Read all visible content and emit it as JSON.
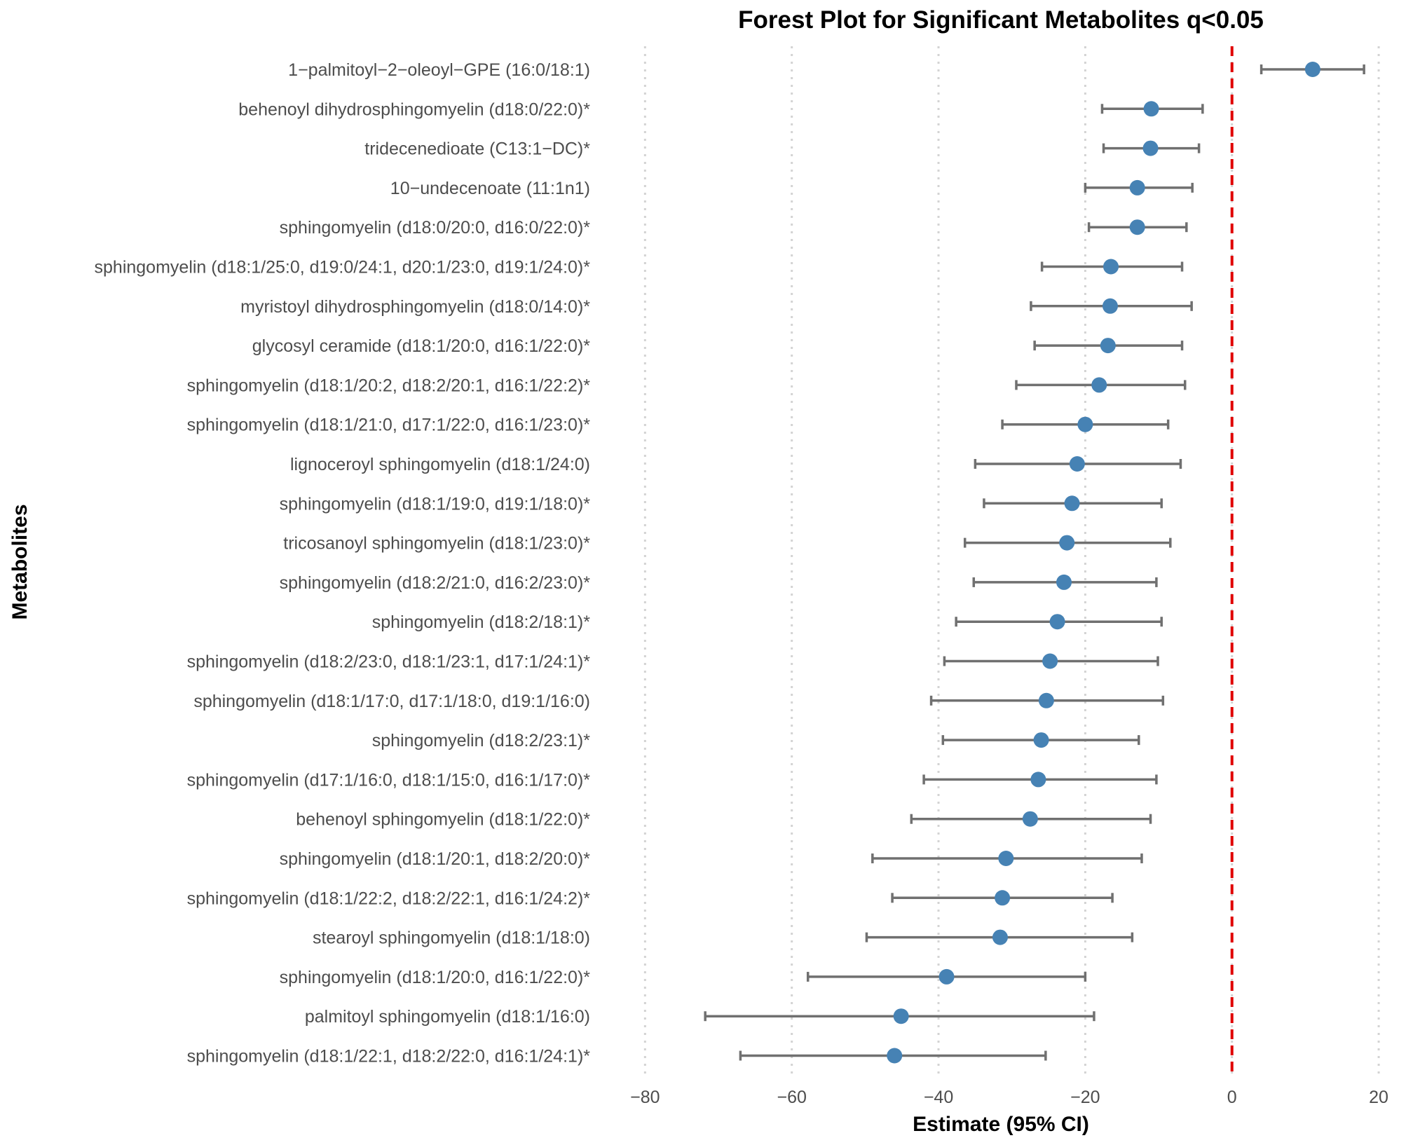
{
  "chart_data": {
    "type": "forest",
    "title": "Forest Plot for Significant Metabolites q<0.05",
    "xlabel": "Estimate (95% CI)",
    "ylabel": "Metabolites",
    "xlim": [
      -85,
      22
    ],
    "xticks": [
      -80,
      -60,
      -40,
      -20,
      0,
      20
    ],
    "xtick_labels": [
      "−80",
      "−60",
      "−40",
      "−20",
      "0",
      "20"
    ],
    "reference_line": 0,
    "colors": {
      "point": "#4682b4",
      "ci": "#707070",
      "reference": "#e00000"
    },
    "rows": [
      {
        "label": "1−palmitoyl−2−oleoyl−GPE (16:0/18:1)",
        "estimate": 11.0,
        "lower": 4.0,
        "upper": 18.0
      },
      {
        "label": "behenoyl dihydrosphingomyelin (d18:0/22:0)*",
        "estimate": -11.0,
        "lower": -17.7,
        "upper": -4.0
      },
      {
        "label": "tridecenedioate (C13:1−DC)*",
        "estimate": -11.1,
        "lower": -17.5,
        "upper": -4.5
      },
      {
        "label": "10−undecenoate (11:1n1)",
        "estimate": -12.9,
        "lower": -20.0,
        "upper": -5.4
      },
      {
        "label": "sphingomyelin (d18:0/20:0, d16:0/22:0)*",
        "estimate": -12.9,
        "lower": -19.5,
        "upper": -6.2
      },
      {
        "label": "sphingomyelin (d18:1/25:0, d19:0/24:1, d20:1/23:0, d19:1/24:0)*",
        "estimate": -16.5,
        "lower": -25.9,
        "upper": -6.8
      },
      {
        "label": "myristoyl dihydrosphingomyelin (d18:0/14:0)*",
        "estimate": -16.6,
        "lower": -27.4,
        "upper": -5.5
      },
      {
        "label": "glycosyl ceramide (d18:1/20:0, d16:1/22:0)*",
        "estimate": -16.9,
        "lower": -26.9,
        "upper": -6.8
      },
      {
        "label": "sphingomyelin (d18:1/20:2, d18:2/20:1, d16:1/22:2)*",
        "estimate": -18.1,
        "lower": -29.4,
        "upper": -6.4
      },
      {
        "label": "sphingomyelin (d18:1/21:0, d17:1/22:0, d16:1/23:0)*",
        "estimate": -20.0,
        "lower": -31.3,
        "upper": -8.7
      },
      {
        "label": "lignoceroyl sphingomyelin (d18:1/24:0)",
        "estimate": -21.1,
        "lower": -35.0,
        "upper": -7.0
      },
      {
        "label": "sphingomyelin (d18:1/19:0, d19:1/18:0)*",
        "estimate": -21.8,
        "lower": -33.8,
        "upper": -9.6
      },
      {
        "label": "tricosanoyl sphingomyelin (d18:1/23:0)*",
        "estimate": -22.5,
        "lower": -36.4,
        "upper": -8.4
      },
      {
        "label": "sphingomyelin (d18:2/21:0, d16:2/23:0)*",
        "estimate": -22.9,
        "lower": -35.2,
        "upper": -10.3
      },
      {
        "label": "sphingomyelin (d18:2/18:1)*",
        "estimate": -23.8,
        "lower": -37.6,
        "upper": -9.6
      },
      {
        "label": "sphingomyelin (d18:2/23:0, d18:1/23:1, d17:1/24:1)*",
        "estimate": -24.8,
        "lower": -39.2,
        "upper": -10.1
      },
      {
        "label": "sphingomyelin (d18:1/17:0, d17:1/18:0, d19:1/16:0)",
        "estimate": -25.3,
        "lower": -41.0,
        "upper": -9.4
      },
      {
        "label": "sphingomyelin (d18:2/23:1)*",
        "estimate": -26.0,
        "lower": -39.4,
        "upper": -12.7
      },
      {
        "label": "sphingomyelin (d17:1/16:0, d18:1/15:0, d16:1/17:0)*",
        "estimate": -26.4,
        "lower": -42.0,
        "upper": -10.3
      },
      {
        "label": "behenoyl sphingomyelin (d18:1/22:0)*",
        "estimate": -27.5,
        "lower": -43.7,
        "upper": -11.1
      },
      {
        "label": "sphingomyelin (d18:1/20:1, d18:2/20:0)*",
        "estimate": -30.8,
        "lower": -49.0,
        "upper": -12.3
      },
      {
        "label": "sphingomyelin (d18:1/22:2, d18:2/22:1, d16:1/24:2)*",
        "estimate": -31.3,
        "lower": -46.3,
        "upper": -16.3
      },
      {
        "label": "stearoyl sphingomyelin (d18:1/18:0)",
        "estimate": -31.6,
        "lower": -49.8,
        "upper": -13.6
      },
      {
        "label": "sphingomyelin (d18:1/20:0, d16:1/22:0)*",
        "estimate": -38.9,
        "lower": -57.8,
        "upper": -20.0
      },
      {
        "label": "palmitoyl sphingomyelin (d18:1/16:0)",
        "estimate": -45.1,
        "lower": -71.8,
        "upper": -18.8
      },
      {
        "label": "sphingomyelin (d18:1/22:1, d18:2/22:0, d16:1/24:1)*",
        "estimate": -46.0,
        "lower": -67.0,
        "upper": -25.4
      }
    ]
  }
}
